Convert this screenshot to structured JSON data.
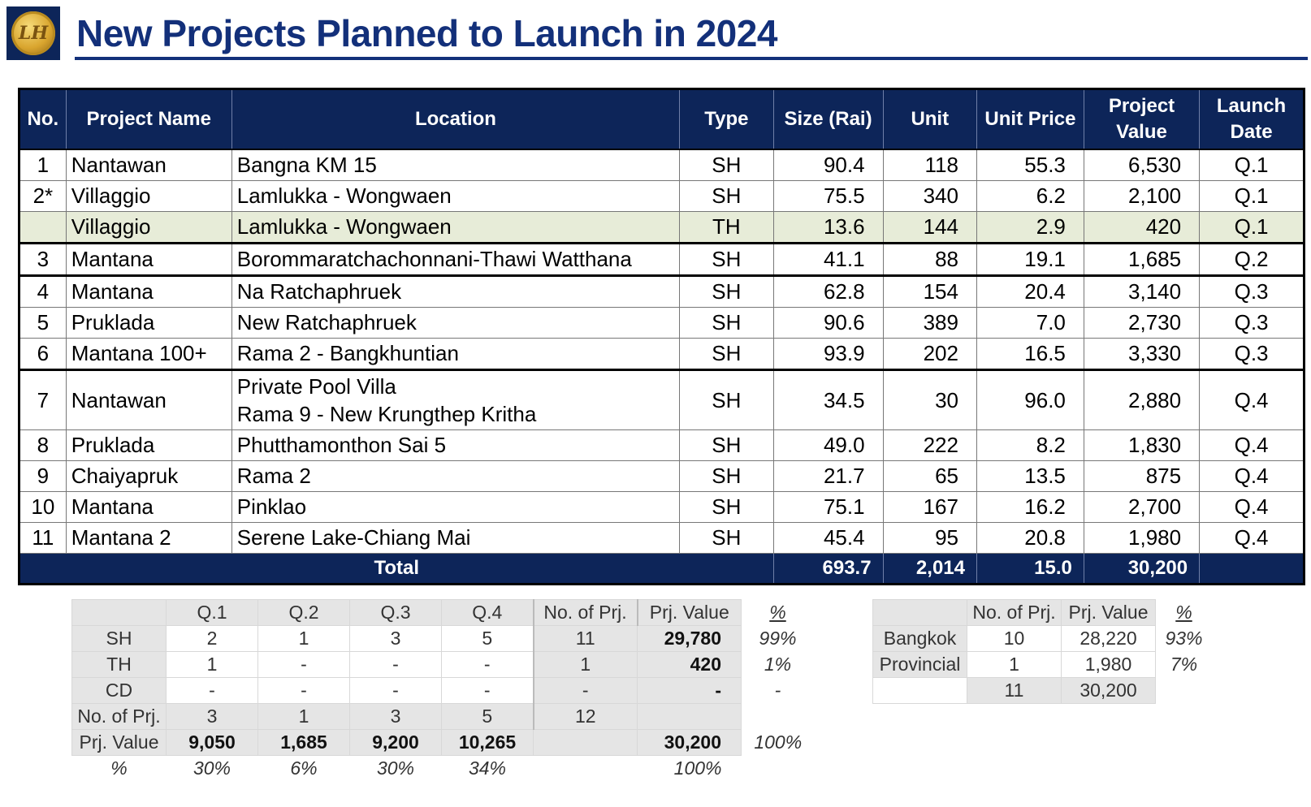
{
  "header": {
    "title": "New Projects Planned to Launch in 2024"
  },
  "main_table": {
    "columns": [
      "No.",
      "Project Name",
      "Location",
      "Type",
      "Size (Rai)",
      "Unit",
      "Unit Price",
      "Project Value",
      "Launch Date"
    ],
    "rows": [
      {
        "no": "1",
        "name": "Nantawan",
        "loc": "Bangna KM 15",
        "type": "SH",
        "size": "90.4",
        "unit": "118",
        "price": "55.3",
        "value": "6,530",
        "date": "Q.1"
      },
      {
        "no": "2*",
        "name": "Villaggio",
        "loc": "Lamlukka - Wongwaen",
        "type": "SH",
        "size": "75.5",
        "unit": "340",
        "price": "6.2",
        "value": "2,100",
        "date": "Q.1"
      },
      {
        "no": "",
        "name": "Villaggio",
        "loc": "Lamlukka - Wongwaen",
        "type": "TH",
        "size": "13.6",
        "unit": "144",
        "price": "2.9",
        "value": "420",
        "date": "Q.1"
      },
      {
        "no": "3",
        "name": "Mantana",
        "loc": "Borommaratchachonnani-Thawi Watthana",
        "type": "SH",
        "size": "41.1",
        "unit": "88",
        "price": "19.1",
        "value": "1,685",
        "date": "Q.2"
      },
      {
        "no": "4",
        "name": "Mantana",
        "loc": "Na Ratchaphruek",
        "type": "SH",
        "size": "62.8",
        "unit": "154",
        "price": "20.4",
        "value": "3,140",
        "date": "Q.3"
      },
      {
        "no": "5",
        "name": "Pruklada",
        "loc": "New Ratchaphruek",
        "type": "SH",
        "size": "90.6",
        "unit": "389",
        "price": "7.0",
        "value": "2,730",
        "date": "Q.3"
      },
      {
        "no": "6",
        "name": "Mantana 100+",
        "loc": "Rama 2 - Bangkhuntian",
        "type": "SH",
        "size": "93.9",
        "unit": "202",
        "price": "16.5",
        "value": "3,330",
        "date": "Q.3"
      },
      {
        "no": "7",
        "name": "Nantawan",
        "loc": "Private Pool Villa",
        "loc2": "Rama 9 - New Krungthep Kritha",
        "type": "SH",
        "size": "34.5",
        "unit": "30",
        "price": "96.0",
        "value": "2,880",
        "date": "Q.4"
      },
      {
        "no": "8",
        "name": "Pruklada",
        "loc": "Phutthamonthon Sai 5",
        "type": "SH",
        "size": "49.0",
        "unit": "222",
        "price": "8.2",
        "value": "1,830",
        "date": "Q.4"
      },
      {
        "no": "9",
        "name": "Chaiyapruk",
        "loc": "Rama 2",
        "type": "SH",
        "size": "21.7",
        "unit": "65",
        "price": "13.5",
        "value": "875",
        "date": "Q.4"
      },
      {
        "no": "10",
        "name": "Mantana",
        "loc": "Pinklao",
        "type": "SH",
        "size": "75.1",
        "unit": "167",
        "price": "16.2",
        "value": "2,700",
        "date": "Q.4"
      },
      {
        "no": "11",
        "name": "Mantana 2",
        "loc": "Serene Lake-Chiang Mai",
        "type": "SH",
        "size": "45.4",
        "unit": "95",
        "price": "20.8",
        "value": "1,980",
        "date": "Q.4"
      }
    ],
    "total": {
      "label": "Total",
      "size": "693.7",
      "unit": "2,014",
      "price": "15.0",
      "value": "30,200"
    }
  },
  "quarter_table": {
    "header": [
      "Q.1",
      "Q.2",
      "Q.3",
      "Q.4",
      "No. of Prj.",
      "Prj. Value",
      "%"
    ],
    "rows": [
      {
        "label": "SH",
        "q1": "2",
        "q2": "1",
        "q3": "3",
        "q4": "5",
        "n": "11",
        "v": "29,780",
        "p": "99%"
      },
      {
        "label": "TH",
        "q1": "1",
        "q2": "-",
        "q3": "-",
        "q4": "-",
        "n": "1",
        "v": "420",
        "p": "1%"
      },
      {
        "label": "CD",
        "q1": "-",
        "q2": "-",
        "q3": "-",
        "q4": "-",
        "n": "-",
        "v": "-",
        "p": "-"
      }
    ],
    "count_row": {
      "label": "No. of Prj.",
      "q1": "3",
      "q2": "1",
      "q3": "3",
      "q4": "5",
      "n": "12"
    },
    "value_row": {
      "label": "Prj. Value",
      "q1": "9,050",
      "q2": "1,685",
      "q3": "9,200",
      "q4": "10,265",
      "v": "30,200",
      "p": "100%"
    },
    "pct_row": {
      "label": "%",
      "q1": "30%",
      "q2": "6%",
      "q3": "30%",
      "q4": "34%",
      "v": "100%"
    }
  },
  "region_table": {
    "header": [
      "No. of Prj.",
      "Prj. Value",
      "%"
    ],
    "rows": [
      {
        "label": "Bangkok",
        "n": "10",
        "v": "28,220",
        "p": "93%"
      },
      {
        "label": "Provincial",
        "n": "1",
        "v": "1,980",
        "p": "7%"
      }
    ],
    "total": {
      "n": "11",
      "v": "30,200"
    }
  }
}
